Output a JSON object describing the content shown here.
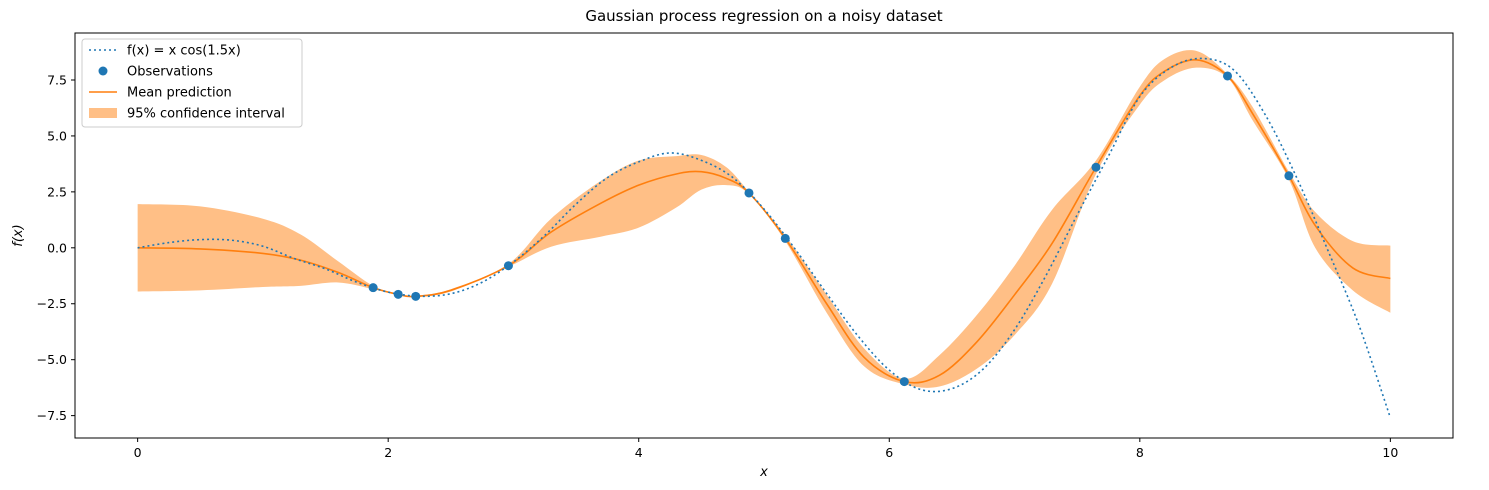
{
  "chart_data": {
    "type": "line",
    "title": "Gaussian process regression on a noisy dataset",
    "xlabel": "x",
    "ylabel": "f(x)",
    "xlim": [
      -0.5,
      10.5
    ],
    "ylim": [
      -8.5,
      9.6
    ],
    "x_ticks": [
      0,
      2,
      4,
      6,
      8,
      10
    ],
    "x_tick_labels": [
      "0",
      "2",
      "4",
      "6",
      "8",
      "10"
    ],
    "y_ticks": [
      -7.5,
      -5.0,
      -2.5,
      0.0,
      2.5,
      5.0,
      7.5
    ],
    "y_tick_labels": [
      "−7.5",
      "−5.0",
      "−2.5",
      "0.0",
      "2.5",
      "5.0",
      "7.5"
    ],
    "grid": false,
    "legend_position": "upper-left",
    "colors": {
      "true_function": "#1f77b4",
      "observations": "#1f77b4",
      "mean": "#ff7f0e",
      "interval": "#ffbf86"
    },
    "legend": [
      {
        "key": "true_function",
        "label": "f(x) = x cos(1.5x)",
        "label_main": "f(x) = x cos(1.5x)",
        "style": "dotted"
      },
      {
        "key": "observations",
        "label": "Observations",
        "style": "marker"
      },
      {
        "key": "mean",
        "label": "Mean prediction",
        "style": "line"
      },
      {
        "key": "interval",
        "label": "95% confidence interval",
        "style": "patch"
      }
    ],
    "true_function": {
      "name": "f(x) = x cos(1.5x)",
      "x": [
        0.0,
        0.25,
        0.5,
        0.75,
        1.0,
        1.25,
        1.5,
        1.75,
        2.0,
        2.25,
        2.5,
        2.75,
        3.0,
        3.25,
        3.5,
        3.75,
        4.0,
        4.25,
        4.5,
        4.75,
        5.0,
        5.25,
        5.5,
        5.75,
        6.0,
        6.25,
        6.5,
        6.75,
        7.0,
        7.25,
        7.5,
        7.75,
        8.0,
        8.25,
        8.5,
        8.75,
        9.0,
        9.25,
        9.5,
        9.75,
        10.0
      ],
      "y": [
        0.0,
        0.233,
        0.366,
        0.339,
        0.071,
        -0.478,
        -0.943,
        -1.539,
        -1.98,
        -2.164,
        -2.052,
        -1.54,
        -0.631,
        0.557,
        1.954,
        3.136,
        3.841,
        4.239,
        3.91,
        3.146,
        1.733,
        -0.067,
        -2.041,
        -3.938,
        -5.467,
        -6.334,
        -6.295,
        -5.417,
        -3.66,
        -1.247,
        1.473,
        4.104,
        6.753,
        8.054,
        8.464,
        7.946,
        5.957,
        3.164,
        -0.095,
        -3.474,
        -7.596
      ]
    },
    "observations": {
      "name": "Observations",
      "x": [
        1.88,
        2.08,
        2.22,
        2.96,
        4.88,
        5.17,
        6.12,
        7.65,
        8.7,
        9.19
      ],
      "y": [
        -1.78,
        -2.08,
        -2.17,
        -0.8,
        2.45,
        0.42,
        -5.98,
        3.6,
        7.68,
        3.22
      ]
    },
    "mean_prediction": {
      "name": "Mean prediction",
      "x": [
        0.0,
        0.5,
        1.0,
        1.3,
        1.6,
        1.88,
        2.08,
        2.22,
        2.5,
        2.96,
        3.3,
        3.7,
        4.0,
        4.3,
        4.5,
        4.7,
        4.88,
        5.17,
        5.5,
        5.8,
        6.12,
        6.4,
        6.7,
        7.0,
        7.3,
        7.65,
        8.0,
        8.2,
        8.45,
        8.7,
        8.9,
        9.19,
        9.4,
        9.7,
        10.0
      ],
      "y": [
        0.0,
        -0.05,
        -0.25,
        -0.55,
        -1.1,
        -1.78,
        -2.08,
        -2.17,
        -1.9,
        -0.8,
        0.7,
        2.0,
        2.8,
        3.3,
        3.4,
        3.1,
        2.45,
        0.42,
        -2.5,
        -4.9,
        -5.98,
        -5.7,
        -4.2,
        -2.1,
        0.2,
        3.6,
        6.8,
        7.9,
        8.4,
        7.68,
        6.0,
        3.22,
        1.0,
        -0.9,
        -1.37
      ]
    },
    "confidence_interval": {
      "name": "95% confidence interval",
      "x": [
        0.0,
        0.5,
        1.0,
        1.3,
        1.6,
        1.88,
        2.08,
        2.22,
        2.5,
        2.96,
        3.3,
        3.7,
        4.0,
        4.3,
        4.5,
        4.7,
        4.88,
        5.17,
        5.5,
        5.8,
        6.12,
        6.4,
        6.7,
        7.0,
        7.3,
        7.65,
        8.0,
        8.2,
        8.45,
        8.7,
        8.9,
        9.19,
        9.4,
        9.7,
        10.0
      ],
      "lower": [
        -1.95,
        -1.9,
        -1.75,
        -1.7,
        -1.55,
        -1.85,
        -2.12,
        -2.2,
        -1.95,
        -0.85,
        0.05,
        0.5,
        0.9,
        1.8,
        2.6,
        2.8,
        2.4,
        0.3,
        -2.9,
        -5.3,
        -6.1,
        -6.2,
        -5.4,
        -3.9,
        -1.6,
        3.3,
        6.4,
        7.5,
        8.05,
        7.6,
        5.7,
        3.05,
        0.0,
        -1.9,
        -2.9
      ],
      "upper": [
        1.95,
        1.85,
        1.3,
        0.6,
        -0.6,
        -1.7,
        -2.04,
        -2.13,
        -1.85,
        -0.72,
        1.3,
        3.0,
        3.9,
        4.1,
        4.15,
        3.6,
        2.5,
        0.55,
        -2.1,
        -4.5,
        -5.85,
        -4.8,
        -3.0,
        -0.8,
        1.7,
        3.9,
        7.2,
        8.45,
        8.8,
        7.76,
        6.3,
        3.4,
        1.6,
        0.3,
        0.1
      ]
    }
  }
}
